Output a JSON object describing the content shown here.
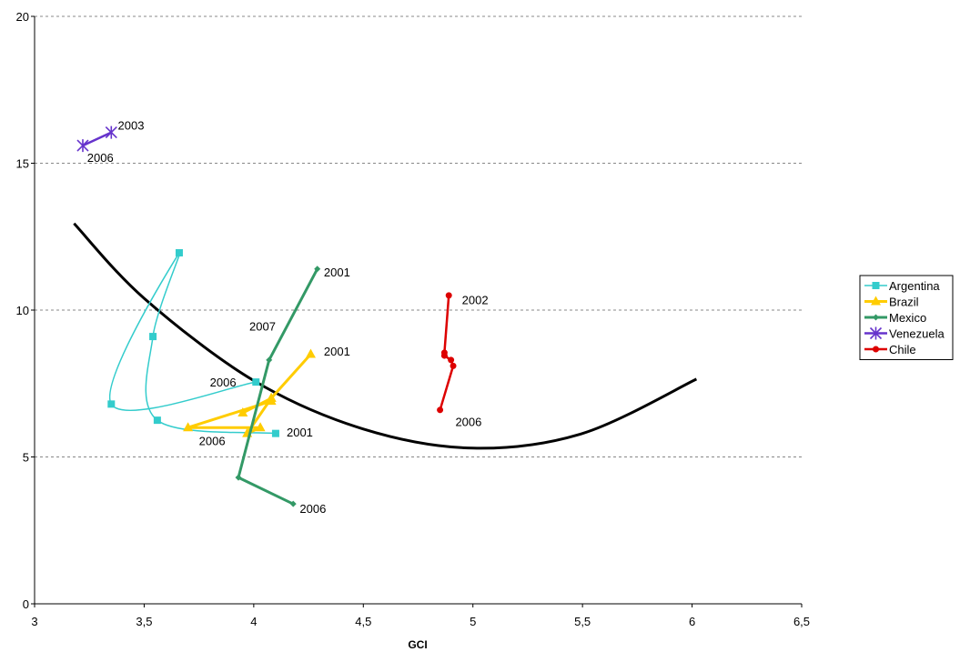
{
  "chart_data": {
    "type": "scatter",
    "title": "",
    "xlabel": "GCI",
    "ylabel": "",
    "xlim": [
      3,
      6.5
    ],
    "ylim": [
      0,
      20
    ],
    "x_ticks": [
      "3",
      "3,5",
      "4",
      "4,5",
      "5",
      "5,5",
      "6",
      "6,5"
    ],
    "y_ticks": [
      "0",
      "5",
      "10",
      "15",
      "20"
    ],
    "grid": "horizontal-dashed",
    "legend_position": "right",
    "series": [
      {
        "name": "Argentina",
        "color": "#33CCCC",
        "marker": "square",
        "smooth": true,
        "points": [
          [
            4.1,
            5.8
          ],
          [
            3.56,
            6.25
          ],
          [
            3.54,
            9.1
          ],
          [
            3.66,
            11.95
          ],
          [
            3.35,
            6.8
          ],
          [
            4.01,
            7.55
          ]
        ]
      },
      {
        "name": "Brazil",
        "color": "#FFCC00",
        "marker": "triangle",
        "smooth": false,
        "points": [
          [
            4.26,
            8.5
          ],
          [
            4.08,
            7.0
          ],
          [
            4.08,
            6.9
          ],
          [
            3.7,
            6.0
          ],
          [
            4.03,
            6.0
          ],
          [
            3.97,
            5.8
          ],
          [
            4.08,
            7.0
          ],
          [
            3.95,
            6.5
          ]
        ]
      },
      {
        "name": "Mexico",
        "color": "#339966",
        "marker": "diamond",
        "smooth": false,
        "points": [
          [
            4.29,
            11.4
          ],
          [
            4.07,
            8.3
          ],
          [
            3.93,
            4.3
          ],
          [
            4.18,
            3.4
          ]
        ]
      },
      {
        "name": "Venezuela",
        "color": "#6633CC",
        "marker": "star",
        "smooth": false,
        "points": [
          [
            3.35,
            16.05
          ],
          [
            3.22,
            15.6
          ]
        ]
      },
      {
        "name": "Chile",
        "color": "#DD0000",
        "marker": "circle",
        "smooth": false,
        "points": [
          [
            4.89,
            10.5
          ],
          [
            4.87,
            8.55
          ],
          [
            4.87,
            8.45
          ],
          [
            4.9,
            8.3
          ],
          [
            4.91,
            8.1
          ],
          [
            4.85,
            6.6
          ]
        ]
      }
    ],
    "trendline": {
      "color": "#000000",
      "points": [
        [
          3.18,
          12.95
        ],
        [
          3.5,
          10.4
        ],
        [
          4.0,
          7.6
        ],
        [
          4.5,
          5.95
        ],
        [
          5.0,
          5.3
        ],
        [
          5.5,
          5.8
        ],
        [
          6.02,
          7.65
        ]
      ]
    },
    "annotations": [
      {
        "text": "2003",
        "x": 3.38,
        "y": 16.15
      },
      {
        "text": "2006",
        "x": 3.24,
        "y": 15.05
      },
      {
        "text": "2001",
        "x": 4.32,
        "y": 11.15
      },
      {
        "text": "2007",
        "x": 3.98,
        "y": 9.3
      },
      {
        "text": "2001",
        "x": 4.32,
        "y": 8.45
      },
      {
        "text": "2006",
        "x": 3.8,
        "y": 7.4
      },
      {
        "text": "2001",
        "x": 4.15,
        "y": 5.7
      },
      {
        "text": "2006",
        "x": 3.75,
        "y": 5.4
      },
      {
        "text": "2006",
        "x": 4.21,
        "y": 3.1
      },
      {
        "text": "2002",
        "x": 4.95,
        "y": 10.2
      },
      {
        "text": "2006",
        "x": 4.92,
        "y": 6.05
      }
    ]
  }
}
